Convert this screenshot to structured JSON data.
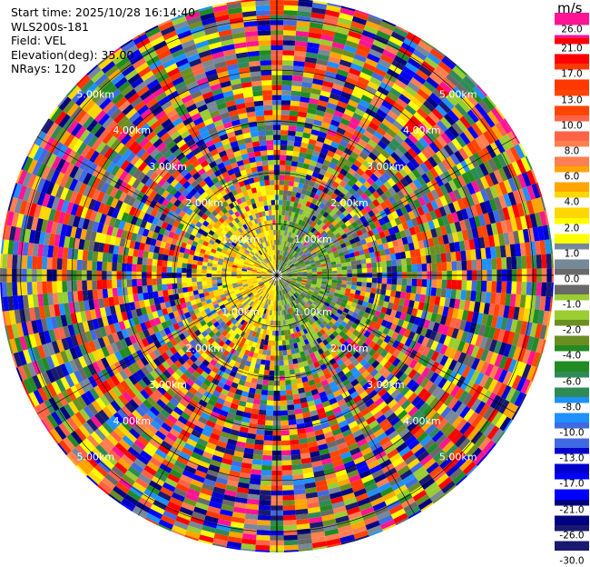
{
  "header": {
    "start_time": "Start time: 2025/10/28 16:14:40",
    "instrument": "WLS200s-181",
    "field": "Field: VEL",
    "elevation": "Elevation(deg): 35.00",
    "nrays": "NRays: 120"
  },
  "colorbar": {
    "unit": "m/s",
    "levels": [
      {
        "label": "26.0",
        "color": "#ff1493"
      },
      {
        "label": "21.0",
        "color": "#ff0000"
      },
      {
        "label": "17.0",
        "color": "#ff3800"
      },
      {
        "label": "13.0",
        "color": "#ff4500"
      },
      {
        "label": "10.0",
        "color": "#ff6347"
      },
      {
        "label": "8.0",
        "color": "#ff7f50"
      },
      {
        "label": "6.0",
        "color": "#ffa500"
      },
      {
        "label": "4.0",
        "color": "#ffd700"
      },
      {
        "label": "2.0",
        "color": "#ffff00"
      },
      {
        "label": "1.0",
        "color": "#778899"
      },
      {
        "label": "0.0",
        "color": "#696969"
      },
      {
        "label": "-1.0",
        "color": "#9acd32"
      },
      {
        "label": "-2.0",
        "color": "#6b8e23"
      },
      {
        "label": "-4.0",
        "color": "#228b22"
      },
      {
        "label": "-6.0",
        "color": "#2e8b57"
      },
      {
        "label": "-8.0",
        "color": "#1e90ff"
      },
      {
        "label": "-10.0",
        "color": "#4169e1"
      },
      {
        "label": "-13.0",
        "color": "#0000cd"
      },
      {
        "label": "-17.0",
        "color": "#0000ff"
      },
      {
        "label": "-21.0",
        "color": "#000080"
      },
      {
        "label": "-26.0",
        "color": "#191970"
      },
      {
        "label": "-30.0",
        "color": ""
      }
    ]
  },
  "chart_data": {
    "type": "heatmap",
    "subtype": "polar-ppi",
    "field": "VEL",
    "unit": "m/s",
    "n_rays": 120,
    "elevation_deg": 35.0,
    "range_rings_km": [
      1.0,
      2.0,
      3.0,
      4.0,
      5.0
    ],
    "ring_labels": [
      "1.00km",
      "2.00km",
      "3.00km",
      "4.00km",
      "5.00km"
    ],
    "max_range_km": 5.4,
    "pattern": "near-field: positive (yellow) west, negative (olive/green) east; far-field: noisy random velocities"
  }
}
